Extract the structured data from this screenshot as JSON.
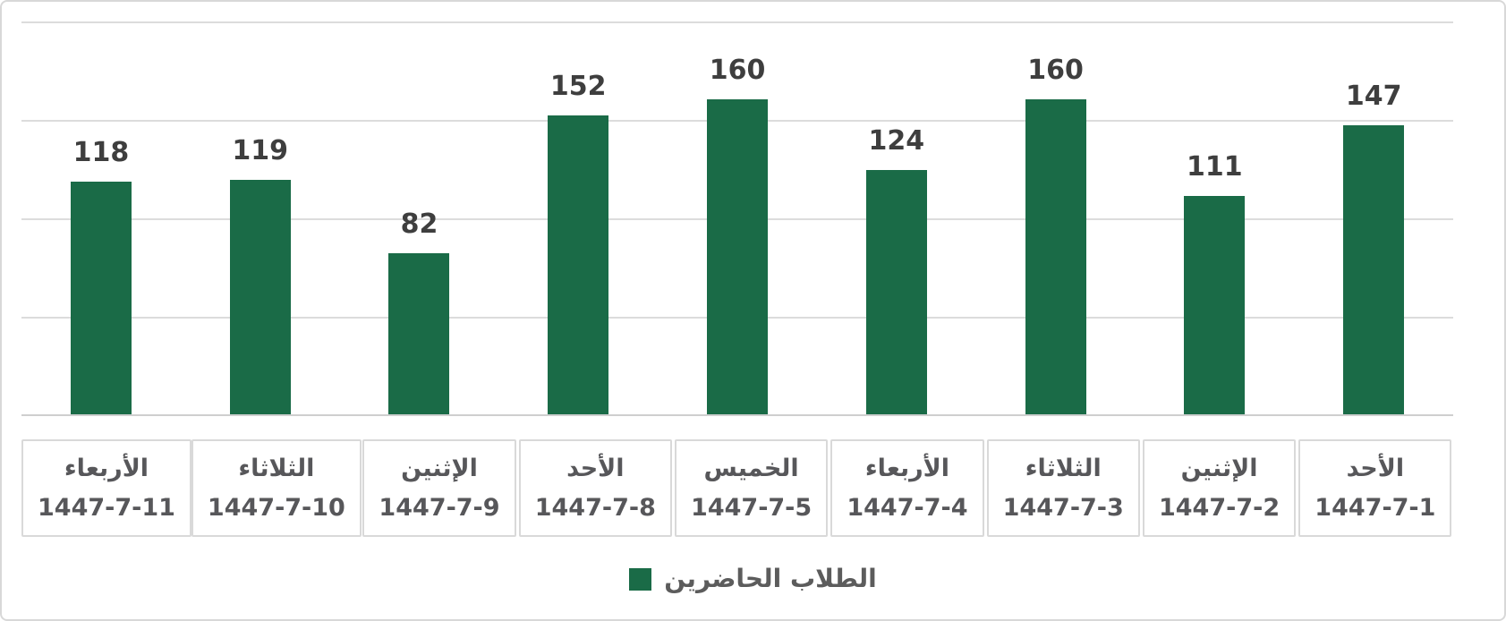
{
  "chart_data": {
    "type": "bar",
    "title": "",
    "xlabel": "",
    "ylabel": "",
    "rtl": true,
    "ylim": [
      0,
      200
    ],
    "grid_interval": 50,
    "grid_on": true,
    "y_axis_labels_visible": false,
    "bar_color": "#1a6b47",
    "value_label_color": "#3e3e3e",
    "legend_position": "bottom",
    "categories": [
      {
        "day": "الأربعاء",
        "date": "1447-7-11"
      },
      {
        "day": "الثلاثاء",
        "date": "1447-7-10"
      },
      {
        "day": "الإثنين",
        "date": "1447-7-9"
      },
      {
        "day": "الأحد",
        "date": "1447-7-8"
      },
      {
        "day": "الخميس",
        "date": "1447-7-5"
      },
      {
        "day": "الأربعاء",
        "date": "1447-7-4"
      },
      {
        "day": "الثلاثاء",
        "date": "1447-7-3"
      },
      {
        "day": "الإثنين",
        "date": "1447-7-2"
      },
      {
        "day": "الأحد",
        "date": "1447-7-1"
      }
    ],
    "series": [
      {
        "name": "الطلاب الحاضرين",
        "values": [
          118,
          119,
          82,
          152,
          160,
          124,
          160,
          111,
          147
        ]
      }
    ]
  },
  "legend": {
    "label": "الطلاب الحاضرين",
    "color": "#1a6b47"
  }
}
